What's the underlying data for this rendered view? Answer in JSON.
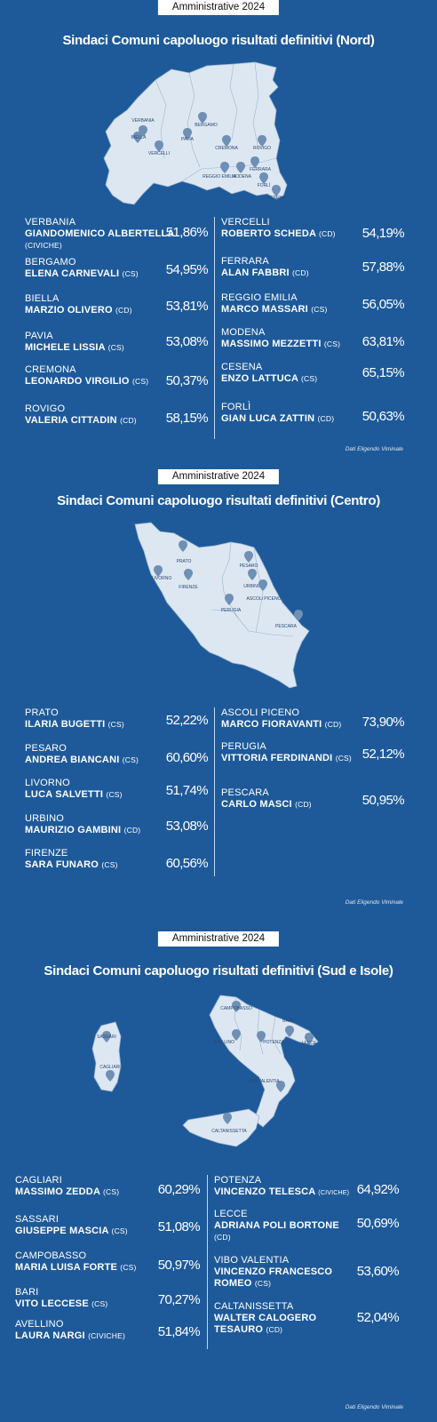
{
  "nord": {
    "tag": "Amministrative 2024",
    "title": "Sindaci Comuni capoluogo risultati definitivi (Nord)",
    "map_labels": [
      "VERBANIA",
      "BIELLA",
      "VERCELLI",
      "PAVIA",
      "BERGAMO",
      "CREMONA",
      "ROVIGO",
      "FERRARA",
      "REGGIO EMILIA",
      "MODENA",
      "FORLÌ",
      "CESENA"
    ],
    "left": [
      {
        "city": "VERBANIA",
        "name": "GIANDOMENICO ALBERTELLA",
        "party": "(CIVICHE)",
        "pct": "51,86%"
      },
      {
        "city": "BERGAMO",
        "name": "ELENA CARNEVALI",
        "party": "(CS)",
        "pct": "54,95%"
      },
      {
        "city": "BIELLA",
        "name": "MARZIO OLIVERO",
        "party": "(CD)",
        "pct": "53,81%"
      },
      {
        "city": "PAVIA",
        "name": "MICHELE LISSIA",
        "party": "(CS)",
        "pct": "53,08%"
      },
      {
        "city": "CREMONA",
        "name": "LEONARDO VIRGILIO",
        "party": "(CS)",
        "pct": "50,37%"
      },
      {
        "city": "ROVIGO",
        "name": "VALERIA CITTADIN",
        "party": "(CD)",
        "pct": "58,15%"
      }
    ],
    "right": [
      {
        "city": "VERCELLI",
        "name": "ROBERTO SCHEDA",
        "party": "(CD)",
        "pct": "54,19%"
      },
      {
        "city": "FERRARA",
        "name": "ALAN FABBRI",
        "party": "(CD)",
        "pct": "57,88%"
      },
      {
        "city": "REGGIO EMILIA",
        "name": "MARCO MASSARI",
        "party": "(CS)",
        "pct": "56,05%"
      },
      {
        "city": "MODENA",
        "name": "MASSIMO MEZZETTI",
        "party": "(CS)",
        "pct": "63,81%"
      },
      {
        "city": "CESENA",
        "name": "ENZO LATTUCA",
        "party": "(CS)",
        "pct": "65,15%"
      },
      {
        "city": "FORLÌ",
        "name": "GIAN LUCA ZATTIN",
        "party": "(CD)",
        "pct": "50,63%"
      }
    ],
    "source": "Dati Eligendo Viminale"
  },
  "centro": {
    "tag": "Amministrative 2024",
    "title": "Sindaci Comuni capoluogo risultati definitivi (Centro)",
    "map_labels": [
      "PRATO",
      "LIVORNO",
      "FIRENZE",
      "PESARO",
      "URBINO",
      "ASCOLI PICENO",
      "PERUGIA",
      "PESCARA"
    ],
    "left": [
      {
        "city": "PRATO",
        "name": "ILARIA BUGETTI",
        "party": "(CS)",
        "pct": "52,22%"
      },
      {
        "city": "PESARO",
        "name": "ANDREA BIANCANI",
        "party": "(CS)",
        "pct": "60,60%"
      },
      {
        "city": "LIVORNO",
        "name": "LUCA SALVETTI",
        "party": "(CS)",
        "pct": "51,74%"
      },
      {
        "city": "URBINO",
        "name": "MAURIZIO GAMBINI",
        "party": "(CD)",
        "pct": "53,08%"
      },
      {
        "city": "FIRENZE",
        "name": "SARA FUNARO",
        "party": "(CS)",
        "pct": "60,56%"
      }
    ],
    "right": [
      {
        "city": "ASCOLI PICENO",
        "name": "MARCO FIORAVANTI",
        "party": "(CD)",
        "pct": "73,90%"
      },
      {
        "city": "PERUGIA",
        "name": "VITTORIA FERDINANDI",
        "party": "(CS)",
        "pct": "52,12%"
      },
      {
        "city": "PESCARA",
        "name": "CARLO MASCI",
        "party": "(CD)",
        "pct": "50,95%"
      }
    ],
    "source": "Dati Eligendo Viminale"
  },
  "sud": {
    "tag": "Amministrative 2024",
    "title": "Sindaci Comuni capoluogo risultati definitivi (Sud e Isole)",
    "map_labels": [
      "SASSARI",
      "CAGLIARI",
      "CAMPOBASSO",
      "BARI",
      "AVELLINO",
      "POTENZA",
      "LECCE",
      "VIBO VALENTIA",
      "CALTANISSETTA"
    ],
    "left": [
      {
        "city": "CAGLIARI",
        "name": "MASSIMO ZEDDA",
        "party": "(CS)",
        "pct": "60,29%"
      },
      {
        "city": "SASSARI",
        "name": "GIUSEPPE MASCIA",
        "party": "(CS)",
        "pct": "51,08%"
      },
      {
        "city": "CAMPOBASSO",
        "name": "MARIA LUISA FORTE",
        "party": "(CS)",
        "pct": "50,97%"
      },
      {
        "city": "BARI",
        "name": "VITO LECCESE",
        "party": "(CS)",
        "pct": "70,27%"
      },
      {
        "city": "AVELLINO",
        "name": "LAURA NARGI",
        "party": "(CIVICHE)",
        "pct": "51,84%"
      }
    ],
    "right": [
      {
        "city": "POTENZA",
        "name": "VINCENZO TELESCA",
        "party": "(CIVICHE)",
        "pct": "64,92%"
      },
      {
        "city": "LECCE",
        "name": "ADRIANA POLI BORTONE",
        "party": "(CD)",
        "pct": "50,69%"
      },
      {
        "city": "VIBO VALENTIA",
        "name": "VINCENZO FRANCESCO ROMEO",
        "party": "(CS)",
        "pct": "53,60%"
      },
      {
        "city": "CALTANISSETTA",
        "name": "WALTER CALOGERO TESAURO",
        "party": "(CD)",
        "pct": "52,04%"
      }
    ],
    "source": "Dati Eligendo Viminale"
  },
  "colors": {
    "background": "#1e5a9a",
    "map_fill": "#dde7f2",
    "pin": "#6f8fb4"
  }
}
